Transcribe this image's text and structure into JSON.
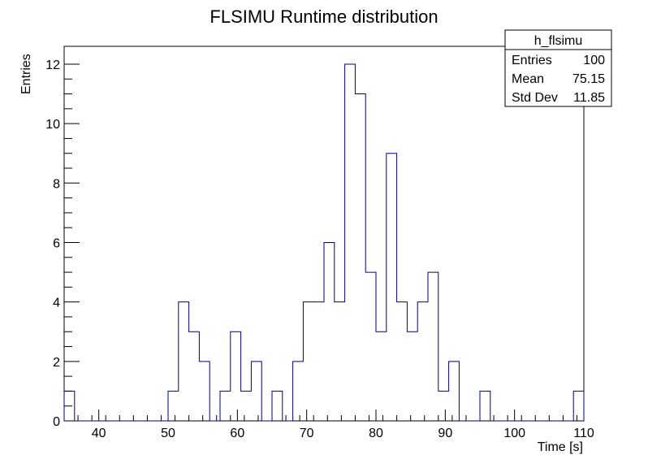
{
  "chart_data": {
    "type": "bar",
    "title": "FLSIMU Runtime distribution",
    "xlabel": "Time [s]",
    "ylabel": "Entries",
    "xlim": [
      35,
      110
    ],
    "ylim": [
      0,
      12.6
    ],
    "bin_width": 1.5,
    "x_ticks": [
      40,
      50,
      60,
      70,
      80,
      90,
      100,
      110
    ],
    "y_ticks": [
      0,
      2,
      4,
      6,
      8,
      10,
      12
    ],
    "line_color": "#000080",
    "bins": [
      {
        "x": 35.0,
        "value": 1
      },
      {
        "x": 36.5,
        "value": 0
      },
      {
        "x": 38.0,
        "value": 0
      },
      {
        "x": 39.5,
        "value": 0
      },
      {
        "x": 41.0,
        "value": 0
      },
      {
        "x": 42.5,
        "value": 0
      },
      {
        "x": 44.0,
        "value": 0
      },
      {
        "x": 45.5,
        "value": 0
      },
      {
        "x": 47.0,
        "value": 0
      },
      {
        "x": 48.5,
        "value": 0
      },
      {
        "x": 50.0,
        "value": 1
      },
      {
        "x": 51.5,
        "value": 4
      },
      {
        "x": 53.0,
        "value": 3
      },
      {
        "x": 54.5,
        "value": 2
      },
      {
        "x": 56.0,
        "value": 0
      },
      {
        "x": 57.5,
        "value": 1
      },
      {
        "x": 59.0,
        "value": 3
      },
      {
        "x": 60.5,
        "value": 1
      },
      {
        "x": 62.0,
        "value": 2
      },
      {
        "x": 63.5,
        "value": 0
      },
      {
        "x": 65.0,
        "value": 1
      },
      {
        "x": 66.5,
        "value": 0
      },
      {
        "x": 68.0,
        "value": 2
      },
      {
        "x": 69.5,
        "value": 4
      },
      {
        "x": 71.0,
        "value": 4
      },
      {
        "x": 72.5,
        "value": 6
      },
      {
        "x": 74.0,
        "value": 4
      },
      {
        "x": 75.5,
        "value": 12
      },
      {
        "x": 77.0,
        "value": 11
      },
      {
        "x": 78.5,
        "value": 5
      },
      {
        "x": 80.0,
        "value": 3
      },
      {
        "x": 81.5,
        "value": 9
      },
      {
        "x": 83.0,
        "value": 4
      },
      {
        "x": 84.5,
        "value": 3
      },
      {
        "x": 86.0,
        "value": 4
      },
      {
        "x": 87.5,
        "value": 5
      },
      {
        "x": 89.0,
        "value": 1
      },
      {
        "x": 90.5,
        "value": 2
      },
      {
        "x": 92.0,
        "value": 0
      },
      {
        "x": 93.5,
        "value": 0
      },
      {
        "x": 95.0,
        "value": 1
      },
      {
        "x": 96.5,
        "value": 0
      },
      {
        "x": 98.0,
        "value": 0
      },
      {
        "x": 99.5,
        "value": 0
      },
      {
        "x": 101.0,
        "value": 0
      },
      {
        "x": 102.5,
        "value": 0
      },
      {
        "x": 104.0,
        "value": 0
      },
      {
        "x": 105.5,
        "value": 0
      },
      {
        "x": 107.0,
        "value": 0
      },
      {
        "x": 108.5,
        "value": 1
      }
    ],
    "stats_box": {
      "name": "h_flsimu",
      "rows": [
        {
          "label": "Entries",
          "value": "100"
        },
        {
          "label": "Mean",
          "value": "75.15"
        },
        {
          "label": "Std Dev",
          "value": "11.85"
        }
      ]
    }
  }
}
